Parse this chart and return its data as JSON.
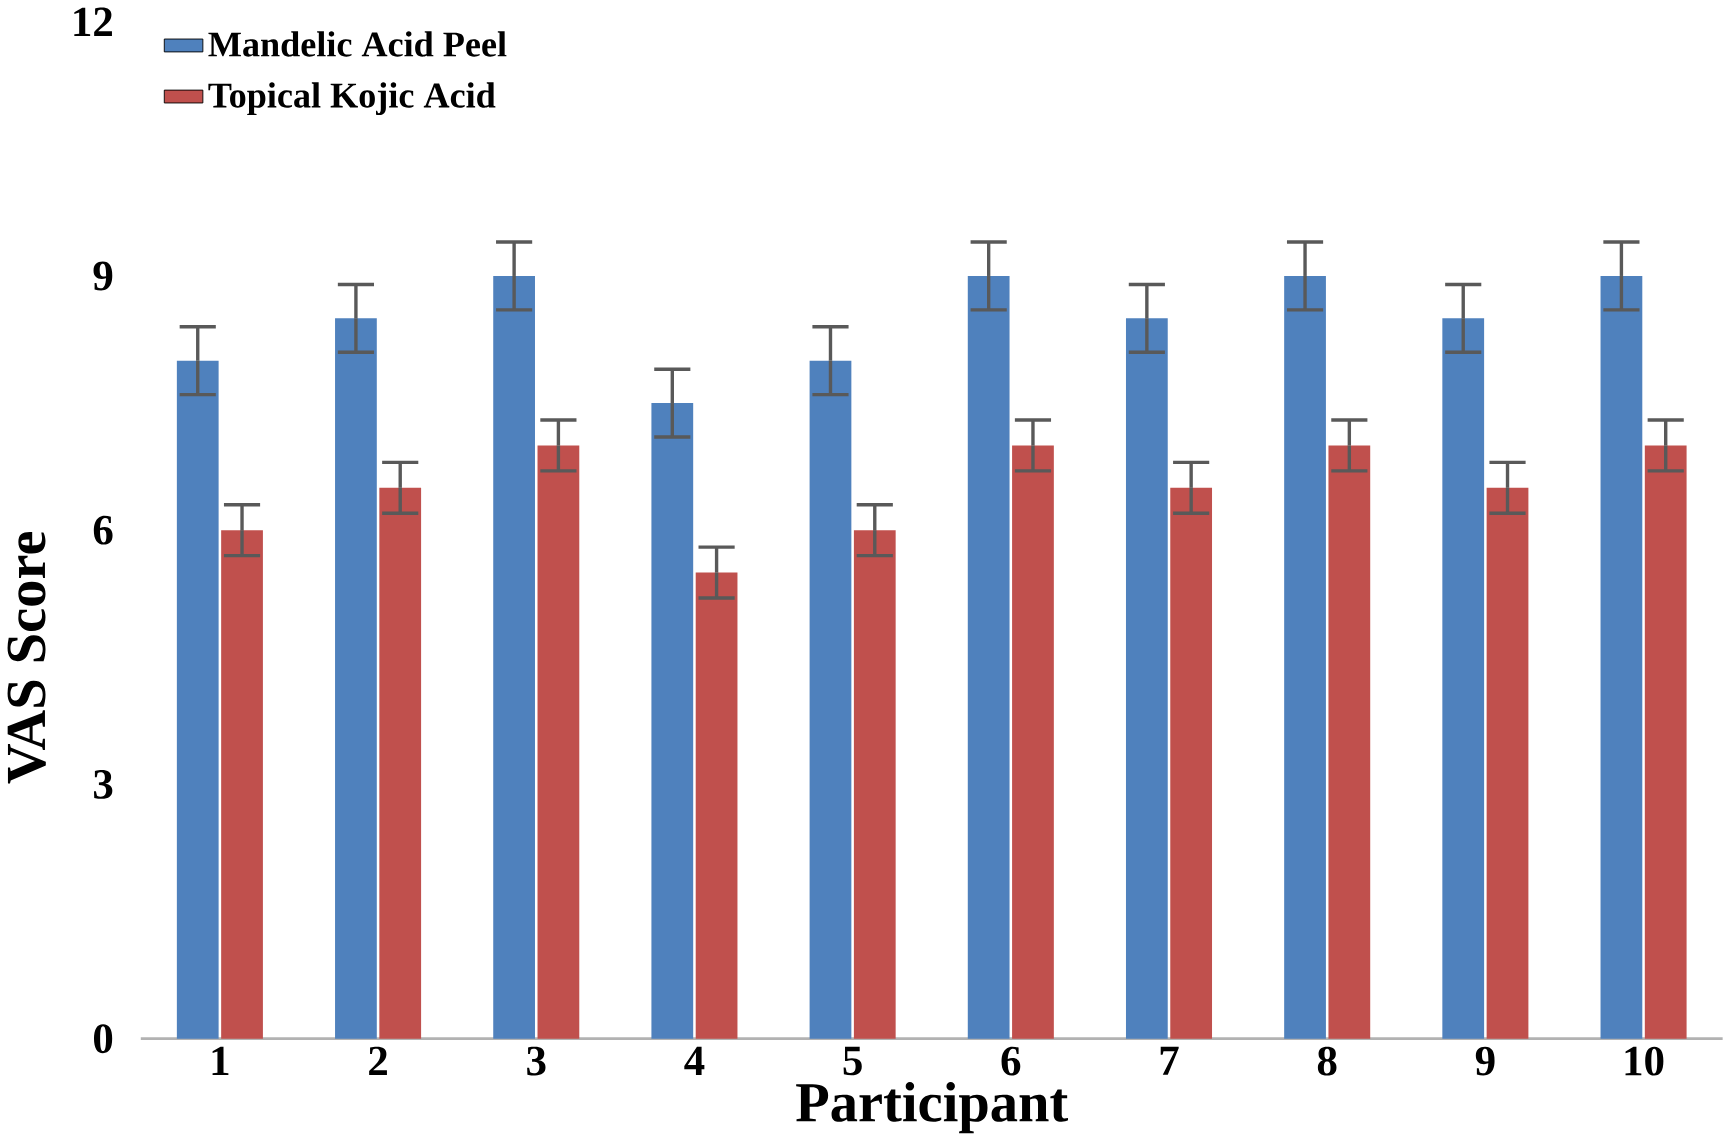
{
  "chart_data": {
    "type": "bar",
    "xlabel": "Participant",
    "ylabel": "VAS Score",
    "categories": [
      "1",
      "2",
      "3",
      "4",
      "5",
      "6",
      "7",
      "8",
      "9",
      "10"
    ],
    "series": [
      {
        "name": "Mandelic Acid Peel",
        "color": "#4f81bd",
        "values": [
          8,
          8.5,
          9,
          7.5,
          8,
          9,
          8.5,
          9,
          8.5,
          9
        ],
        "errors": [
          0.4,
          0.4,
          0.4,
          0.4,
          0.4,
          0.4,
          0.4,
          0.4,
          0.4,
          0.4
        ]
      },
      {
        "name": "Topical Kojic Acid",
        "color": "#c0504d",
        "values": [
          6,
          6.5,
          7,
          5.5,
          6,
          7,
          6.5,
          7,
          6.5,
          7
        ],
        "errors": [
          0.3,
          0.3,
          0.3,
          0.3,
          0.3,
          0.3,
          0.3,
          0.3,
          0.3,
          0.3
        ]
      }
    ],
    "ylim": [
      0,
      12
    ],
    "yticks": [
      0,
      3,
      6,
      9,
      12
    ],
    "legend": "top left"
  }
}
